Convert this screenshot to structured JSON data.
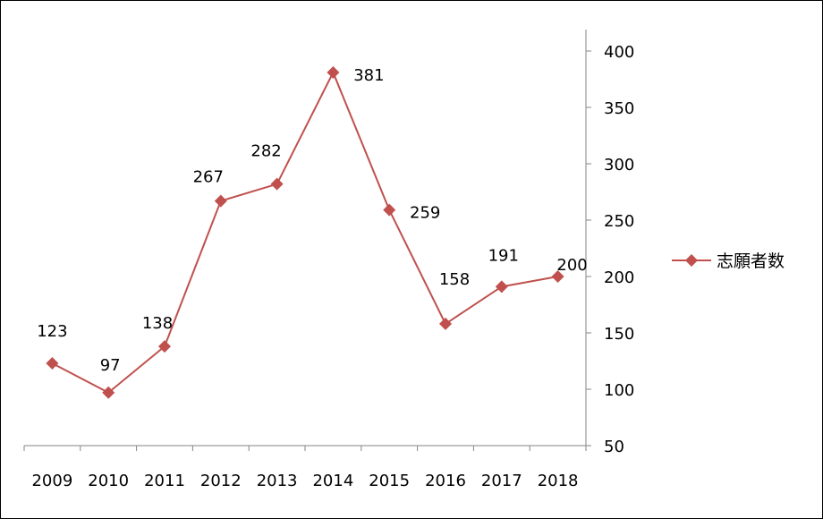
{
  "chart_data": {
    "type": "line",
    "categories": [
      "2009",
      "2010",
      "2011",
      "2012",
      "2013",
      "2014",
      "2015",
      "2016",
      "2017",
      "2018"
    ],
    "series": [
      {
        "name": "志願者数",
        "values": [
          123,
          97,
          138,
          267,
          282,
          381,
          259,
          158,
          191,
          200
        ],
        "color": "#C0504D",
        "marker": "diamond"
      }
    ],
    "y_ticks": [
      "50",
      "100",
      "150",
      "200",
      "250",
      "300",
      "350",
      "400"
    ],
    "ylim": [
      50,
      400
    ],
    "y_axis_side": "right",
    "grid": false,
    "legend_position": "right",
    "data_labels": true
  }
}
